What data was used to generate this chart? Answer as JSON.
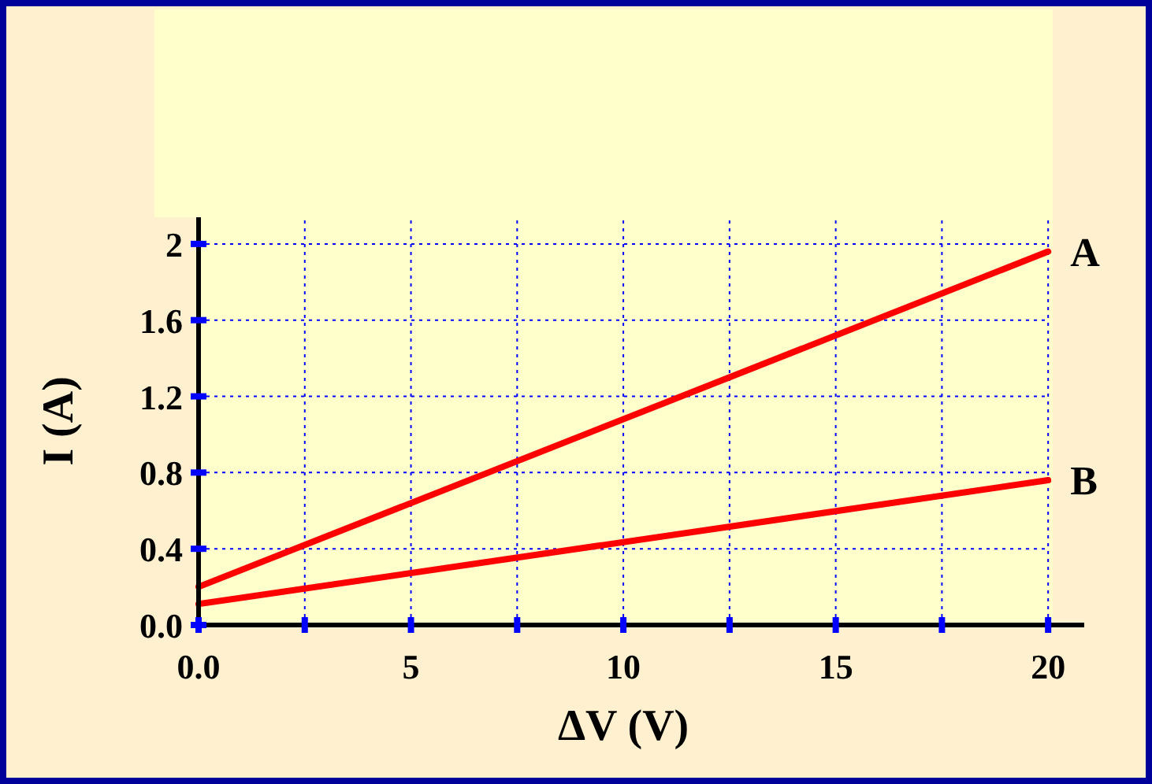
{
  "chart_data": {
    "type": "line",
    "xlabel": "ΔV (V)",
    "ylabel": "I (A)",
    "x": [
      0,
      20
    ],
    "series": [
      {
        "name": "A",
        "color": "#ff0000",
        "values": [
          0.2,
          1.96
        ]
      },
      {
        "name": "B",
        "color": "#ff0000",
        "values": [
          0.11,
          0.76
        ]
      }
    ],
    "xlim": [
      0,
      20.85
    ],
    "xticks": [
      {
        "value": 0,
        "label": "0.0"
      },
      {
        "value": 2.5,
        "label": null
      },
      5,
      {
        "value": 7.5,
        "label": null
      },
      10,
      {
        "value": 12.5,
        "label": null
      },
      15,
      {
        "value": 17.5,
        "label": null
      },
      20
    ],
    "ylim": [
      0,
      2.14
    ],
    "yticks": [
      {
        "value": 0,
        "label": "0.0"
      },
      0.4,
      0.8,
      1.2,
      1.6,
      2
    ],
    "grid": true,
    "legend": false,
    "marker": "none",
    "line_style": "solid"
  }
}
